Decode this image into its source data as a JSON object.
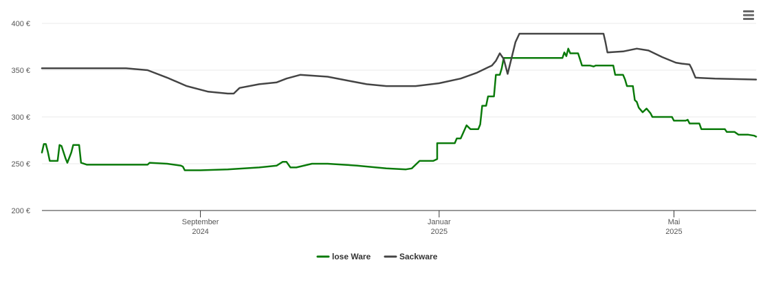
{
  "chart_data": {
    "type": "line",
    "currency_suffix": "€",
    "ylim": [
      200,
      400
    ],
    "y_ticks": [
      {
        "value": 200,
        "label": "200 €"
      },
      {
        "value": 250,
        "label": "250 €"
      },
      {
        "value": 300,
        "label": "300 €"
      },
      {
        "value": 350,
        "label": "350 €"
      },
      {
        "value": 400,
        "label": "400 €"
      }
    ],
    "xlim": [
      "2024-06-12",
      "2025-06-12"
    ],
    "x_ticks": [
      {
        "date": "2024-09-01",
        "line1": "September",
        "line2": "2024"
      },
      {
        "date": "2025-01-01",
        "line1": "Januar",
        "line2": "2025"
      },
      {
        "date": "2025-05-01",
        "line1": "Mai",
        "line2": "2025"
      }
    ],
    "grid": true,
    "legend_position": "bottom-center",
    "series": [
      {
        "name": "lose Ware",
        "color": "#0a7a0a",
        "points": [
          [
            "2024-06-12",
            262
          ],
          [
            "2024-06-13",
            271
          ],
          [
            "2024-06-14",
            271
          ],
          [
            "2024-06-15",
            263
          ],
          [
            "2024-06-16",
            253
          ],
          [
            "2024-06-19",
            253
          ],
          [
            "2024-06-20",
            253
          ],
          [
            "2024-06-21",
            270
          ],
          [
            "2024-06-22",
            269
          ],
          [
            "2024-06-24",
            256
          ],
          [
            "2024-06-25",
            251
          ],
          [
            "2024-06-27",
            262
          ],
          [
            "2024-06-28",
            270
          ],
          [
            "2024-07-01",
            270
          ],
          [
            "2024-07-02",
            251
          ],
          [
            "2024-07-05",
            249
          ],
          [
            "2024-07-15",
            249
          ],
          [
            "2024-08-05",
            249
          ],
          [
            "2024-08-06",
            251
          ],
          [
            "2024-08-15",
            250
          ],
          [
            "2024-08-22",
            248
          ],
          [
            "2024-08-23",
            247
          ],
          [
            "2024-08-24",
            243
          ],
          [
            "2024-09-01",
            243
          ],
          [
            "2024-09-15",
            244
          ],
          [
            "2024-10-01",
            246
          ],
          [
            "2024-10-10",
            248
          ],
          [
            "2024-10-13",
            252
          ],
          [
            "2024-10-15",
            252
          ],
          [
            "2024-10-17",
            246
          ],
          [
            "2024-10-20",
            246
          ],
          [
            "2024-10-28",
            250
          ],
          [
            "2024-11-05",
            250
          ],
          [
            "2024-11-20",
            248
          ],
          [
            "2024-12-05",
            245
          ],
          [
            "2024-12-15",
            244
          ],
          [
            "2024-12-18",
            245
          ],
          [
            "2024-12-22",
            253
          ],
          [
            "2024-12-29",
            253
          ],
          [
            "2024-12-31",
            255
          ],
          [
            "2024-12-31",
            272
          ],
          [
            "2025-01-01",
            272
          ],
          [
            "2025-01-02",
            272
          ],
          [
            "2025-01-09",
            272
          ],
          [
            "2025-01-10",
            277
          ],
          [
            "2025-01-12",
            277
          ],
          [
            "2025-01-15",
            291
          ],
          [
            "2025-01-17",
            287
          ],
          [
            "2025-01-21",
            287
          ],
          [
            "2025-01-22",
            292
          ],
          [
            "2025-01-23",
            312
          ],
          [
            "2025-01-25",
            312
          ],
          [
            "2025-01-26",
            322
          ],
          [
            "2025-01-29",
            322
          ],
          [
            "2025-01-30",
            345
          ],
          [
            "2025-02-01",
            345
          ],
          [
            "2025-02-02",
            352
          ],
          [
            "2025-02-03",
            363
          ],
          [
            "2025-02-15",
            363
          ],
          [
            "2025-03-05",
            363
          ],
          [
            "2025-03-06",
            369
          ],
          [
            "2025-03-07",
            365
          ],
          [
            "2025-03-08",
            373
          ],
          [
            "2025-03-09",
            368
          ],
          [
            "2025-03-13",
            368
          ],
          [
            "2025-03-15",
            355
          ],
          [
            "2025-03-19",
            355
          ],
          [
            "2025-03-21",
            354
          ],
          [
            "2025-03-22",
            355
          ],
          [
            "2025-03-31",
            355
          ],
          [
            "2025-04-01",
            345
          ],
          [
            "2025-04-05",
            345
          ],
          [
            "2025-04-06",
            340
          ],
          [
            "2025-04-07",
            333
          ],
          [
            "2025-04-10",
            333
          ],
          [
            "2025-04-11",
            318
          ],
          [
            "2025-04-12",
            316
          ],
          [
            "2025-04-13",
            310
          ],
          [
            "2025-04-15",
            305
          ],
          [
            "2025-04-17",
            309
          ],
          [
            "2025-04-19",
            304
          ],
          [
            "2025-04-20",
            300
          ],
          [
            "2025-04-30",
            300
          ],
          [
            "2025-05-01",
            296
          ],
          [
            "2025-05-07",
            296
          ],
          [
            "2025-05-08",
            297
          ],
          [
            "2025-05-09",
            293
          ],
          [
            "2025-05-14",
            293
          ],
          [
            "2025-05-15",
            287
          ],
          [
            "2025-05-27",
            287
          ],
          [
            "2025-05-28",
            284
          ],
          [
            "2025-06-01",
            284
          ],
          [
            "2025-06-03",
            281
          ],
          [
            "2025-06-08",
            281
          ],
          [
            "2025-06-11",
            280
          ],
          [
            "2025-06-12",
            279
          ]
        ]
      },
      {
        "name": "Sackware",
        "color": "#444444",
        "points": [
          [
            "2024-06-12",
            352
          ],
          [
            "2024-07-15",
            352
          ],
          [
            "2024-07-25",
            352
          ],
          [
            "2024-08-05",
            350
          ],
          [
            "2024-08-15",
            342
          ],
          [
            "2024-08-25",
            333
          ],
          [
            "2024-09-05",
            327
          ],
          [
            "2024-09-15",
            325
          ],
          [
            "2024-09-18",
            325
          ],
          [
            "2024-09-21",
            331
          ],
          [
            "2024-10-01",
            335
          ],
          [
            "2024-10-10",
            337
          ],
          [
            "2024-10-15",
            341
          ],
          [
            "2024-10-22",
            345
          ],
          [
            "2024-11-05",
            343
          ],
          [
            "2024-11-15",
            339
          ],
          [
            "2024-11-25",
            335
          ],
          [
            "2024-12-05",
            333
          ],
          [
            "2024-12-20",
            333
          ],
          [
            "2025-01-01",
            336
          ],
          [
            "2025-01-12",
            341
          ],
          [
            "2025-01-20",
            347
          ],
          [
            "2025-01-26",
            353
          ],
          [
            "2025-01-28",
            355
          ],
          [
            "2025-01-30",
            360
          ],
          [
            "2025-02-01",
            368
          ],
          [
            "2025-02-03",
            362
          ],
          [
            "2025-02-05",
            346
          ],
          [
            "2025-02-07",
            363
          ],
          [
            "2025-02-09",
            380
          ],
          [
            "2025-02-11",
            389
          ],
          [
            "2025-03-26",
            389
          ],
          [
            "2025-03-27",
            380
          ],
          [
            "2025-03-28",
            369
          ],
          [
            "2025-04-05",
            370
          ],
          [
            "2025-04-12",
            373
          ],
          [
            "2025-04-18",
            371
          ],
          [
            "2025-04-25",
            364
          ],
          [
            "2025-05-02",
            358
          ],
          [
            "2025-05-05",
            357
          ],
          [
            "2025-05-09",
            356
          ],
          [
            "2025-05-10",
            352
          ],
          [
            "2025-05-12",
            342
          ],
          [
            "2025-05-22",
            341
          ],
          [
            "2025-06-12",
            340
          ]
        ]
      }
    ]
  },
  "menu": {
    "icon": "hamburger-menu-icon"
  }
}
